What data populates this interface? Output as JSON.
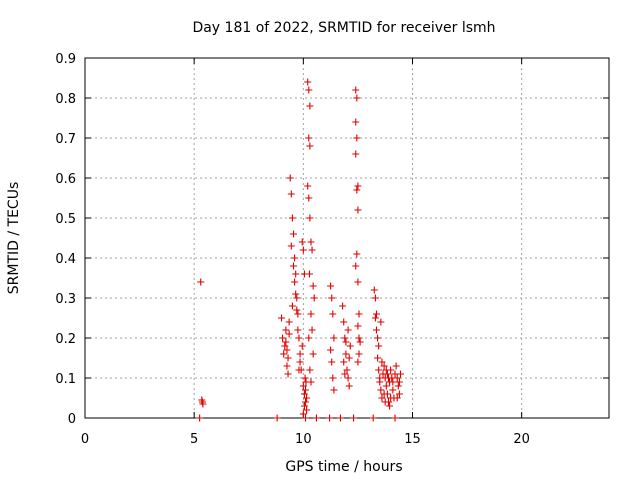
{
  "chart_data": {
    "type": "scatter",
    "title": "Day 181 of 2022, SRMTID for receiver lsmh",
    "xlabel": "GPS time / hours",
    "ylabel": "SRMTID / TECUs",
    "xlim": [
      0,
      24
    ],
    "ylim": [
      0,
      0.9
    ],
    "xticks": [
      0,
      5,
      10,
      15,
      20
    ],
    "xtick_labels": [
      "0",
      "5",
      "10",
      "15",
      "20"
    ],
    "yticks": [
      0,
      0.1,
      0.2,
      0.3,
      0.4,
      0.5,
      0.6,
      0.7,
      0.8,
      0.9
    ],
    "ytick_labels": [
      "0",
      "0.1",
      "0.2",
      "0.3",
      "0.4",
      "0.5",
      "0.6",
      "0.7",
      "0.8",
      "0.9"
    ],
    "grid": true,
    "marker": "+",
    "color": "#e00000",
    "series": [
      {
        "name": "SRMTID",
        "points": [
          [
            5.25,
            0.0
          ],
          [
            5.3,
            0.34
          ],
          [
            5.35,
            0.045
          ],
          [
            5.38,
            0.04
          ],
          [
            5.4,
            0.035
          ],
          [
            8.8,
            0.0
          ],
          [
            9.0,
            0.25
          ],
          [
            9.05,
            0.2
          ],
          [
            9.1,
            0.16
          ],
          [
            9.15,
            0.18
          ],
          [
            9.2,
            0.22
          ],
          [
            9.25,
            0.13
          ],
          [
            9.3,
            0.15
          ],
          [
            9.35,
            0.24
          ],
          [
            9.4,
            0.6
          ],
          [
            9.45,
            0.56
          ],
          [
            9.5,
            0.5
          ],
          [
            9.55,
            0.46
          ],
          [
            9.6,
            0.4
          ],
          [
            9.65,
            0.36
          ],
          [
            9.7,
            0.3
          ],
          [
            9.75,
            0.26
          ],
          [
            9.8,
            0.2
          ],
          [
            9.85,
            0.14
          ],
          [
            9.9,
            0.12
          ],
          [
            9.95,
            0.18
          ],
          [
            9.3,
            0.11
          ],
          [
            9.25,
            0.17
          ],
          [
            9.45,
            0.43
          ],
          [
            9.55,
            0.38
          ],
          [
            9.65,
            0.31
          ],
          [
            9.75,
            0.22
          ],
          [
            9.85,
            0.16
          ],
          [
            9.2,
            0.19
          ],
          [
            9.35,
            0.21
          ],
          [
            9.5,
            0.28
          ],
          [
            9.6,
            0.34
          ],
          [
            9.7,
            0.27
          ],
          [
            9.8,
            0.12
          ],
          [
            9.95,
            0.44
          ],
          [
            10.0,
            0.42
          ],
          [
            10.05,
            0.36
          ],
          [
            10.0,
            0.08
          ],
          [
            10.05,
            0.06
          ],
          [
            10.1,
            0.04
          ],
          [
            10.15,
            0.02
          ],
          [
            10.1,
            0.0
          ],
          [
            10.0,
            0.01
          ],
          [
            10.05,
            0.03
          ],
          [
            10.1,
            0.07
          ],
          [
            10.15,
            0.05
          ],
          [
            10.08,
            0.1
          ],
          [
            10.12,
            0.09
          ],
          [
            10.2,
            0.58
          ],
          [
            10.25,
            0.55
          ],
          [
            10.3,
            0.5
          ],
          [
            10.35,
            0.44
          ],
          [
            10.2,
            0.84
          ],
          [
            10.25,
            0.82
          ],
          [
            10.3,
            0.78
          ],
          [
            10.25,
            0.7
          ],
          [
            10.3,
            0.68
          ],
          [
            10.4,
            0.42
          ],
          [
            10.45,
            0.33
          ],
          [
            10.5,
            0.3
          ],
          [
            10.35,
            0.26
          ],
          [
            10.4,
            0.22
          ],
          [
            10.45,
            0.16
          ],
          [
            10.3,
            0.12
          ],
          [
            10.35,
            0.09
          ],
          [
            10.25,
            0.2
          ],
          [
            10.28,
            0.36
          ],
          [
            10.6,
            0.0
          ],
          [
            11.2,
            0.0
          ],
          [
            11.25,
            0.33
          ],
          [
            11.3,
            0.3
          ],
          [
            11.35,
            0.26
          ],
          [
            11.4,
            0.2
          ],
          [
            11.3,
            0.14
          ],
          [
            11.35,
            0.1
          ],
          [
            11.4,
            0.07
          ],
          [
            11.25,
            0.17
          ],
          [
            11.7,
            0.0
          ],
          [
            11.8,
            0.28
          ],
          [
            11.85,
            0.24
          ],
          [
            11.9,
            0.2
          ],
          [
            11.95,
            0.16
          ],
          [
            12.0,
            0.12
          ],
          [
            12.05,
            0.1
          ],
          [
            12.1,
            0.08
          ],
          [
            11.85,
            0.14
          ],
          [
            11.95,
            0.19
          ],
          [
            12.05,
            0.22
          ],
          [
            12.1,
            0.15
          ],
          [
            12.15,
            0.18
          ],
          [
            11.9,
            0.11
          ],
          [
            12.3,
            0.0
          ],
          [
            12.4,
            0.82
          ],
          [
            12.45,
            0.8
          ],
          [
            12.4,
            0.74
          ],
          [
            12.45,
            0.7
          ],
          [
            12.4,
            0.66
          ],
          [
            12.5,
            0.58
          ],
          [
            12.45,
            0.57
          ],
          [
            12.5,
            0.52
          ],
          [
            12.45,
            0.41
          ],
          [
            12.4,
            0.38
          ],
          [
            12.5,
            0.34
          ],
          [
            12.55,
            0.26
          ],
          [
            12.5,
            0.23
          ],
          [
            12.55,
            0.2
          ],
          [
            12.6,
            0.19
          ],
          [
            12.55,
            0.16
          ],
          [
            12.5,
            0.14
          ],
          [
            13.2,
            0.0
          ],
          [
            13.25,
            0.32
          ],
          [
            13.3,
            0.3
          ],
          [
            13.3,
            0.25
          ],
          [
            13.35,
            0.22
          ],
          [
            13.4,
            0.2
          ],
          [
            13.45,
            0.18
          ],
          [
            13.4,
            0.15
          ],
          [
            13.45,
            0.12
          ],
          [
            13.35,
            0.26
          ],
          [
            13.5,
            0.1
          ],
          [
            13.55,
            0.24
          ],
          [
            13.5,
            0.09
          ],
          [
            13.55,
            0.07
          ],
          [
            13.6,
            0.05
          ],
          [
            13.65,
            0.11
          ],
          [
            13.7,
            0.13
          ],
          [
            13.75,
            0.1
          ],
          [
            13.8,
            0.08
          ],
          [
            13.85,
            0.06
          ],
          [
            13.9,
            0.04
          ],
          [
            13.95,
            0.09
          ],
          [
            14.0,
            0.12
          ],
          [
            14.05,
            0.1
          ],
          [
            14.1,
            0.07
          ],
          [
            14.15,
            0.05
          ],
          [
            14.2,
            0.0
          ],
          [
            14.25,
            0.13
          ],
          [
            14.3,
            0.1
          ],
          [
            14.35,
            0.08
          ],
          [
            14.4,
            0.06
          ],
          [
            14.45,
            0.11
          ],
          [
            13.6,
            0.14
          ],
          [
            13.7,
            0.06
          ],
          [
            13.8,
            0.12
          ],
          [
            13.9,
            0.1
          ],
          [
            14.0,
            0.05
          ],
          [
            14.1,
            0.09
          ],
          [
            14.2,
            0.11
          ],
          [
            14.3,
            0.05
          ],
          [
            14.4,
            0.09
          ],
          [
            13.75,
            0.04
          ],
          [
            13.85,
            0.11
          ],
          [
            13.95,
            0.03
          ]
        ]
      }
    ]
  }
}
